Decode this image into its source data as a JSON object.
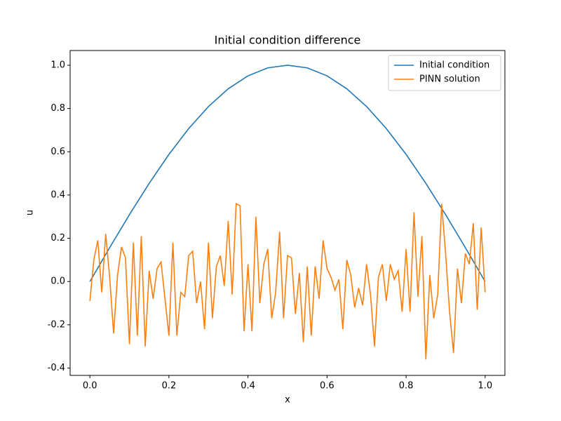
{
  "chart_data": {
    "type": "line",
    "title": "Initial condition difference",
    "x_label": "x",
    "y_label": "u",
    "xlim": [
      -0.05,
      1.05
    ],
    "ylim": [
      -0.434,
      1.068
    ],
    "xticks": [
      {
        "value": 0,
        "label": "0.0"
      },
      0.2,
      0.4,
      0.6,
      0.8,
      {
        "value": 1,
        "label": "1.0"
      }
    ],
    "yticks": [
      -0.4,
      -0.2,
      {
        "value": 0,
        "label": "0.0"
      },
      0.2,
      0.4,
      0.6,
      0.8,
      {
        "value": 1,
        "label": "1.0"
      }
    ],
    "grid": false,
    "legend": "upper right",
    "series": [
      {
        "name": "Initial condition",
        "color": "#1f77b4",
        "x": [
          0,
          0.05,
          0.1,
          0.15,
          0.2,
          0.25,
          0.3,
          0.35,
          0.4,
          0.45,
          0.5,
          0.55,
          0.6,
          0.65,
          0.7,
          0.75,
          0.8,
          0.85,
          0.9,
          0.95,
          1
        ],
        "values": [
          0,
          0.1564,
          0.309,
          0.454,
          0.5878,
          0.7071,
          0.809,
          0.891,
          0.9511,
          0.9877,
          1,
          0.9877,
          0.9511,
          0.891,
          0.809,
          0.7071,
          0.5878,
          0.454,
          0.309,
          0.1564,
          0
        ]
      },
      {
        "name": "PINN solution",
        "color": "#ff7f0e",
        "x": [
          0,
          0.01,
          0.02,
          0.03,
          0.04,
          0.05,
          0.06,
          0.07,
          0.08,
          0.09,
          0.1,
          0.11,
          0.12,
          0.13,
          0.14,
          0.15,
          0.16,
          0.17,
          0.18,
          0.19,
          0.2,
          0.21,
          0.22,
          0.23,
          0.24,
          0.25,
          0.26,
          0.27,
          0.28,
          0.29,
          0.3,
          0.31,
          0.32,
          0.33,
          0.34,
          0.35,
          0.36,
          0.37,
          0.38,
          0.39,
          0.4,
          0.41,
          0.42,
          0.43,
          0.44,
          0.45,
          0.46,
          0.47,
          0.48,
          0.49,
          0.5,
          0.51,
          0.52,
          0.53,
          0.54,
          0.55,
          0.56,
          0.57,
          0.58,
          0.59,
          0.6,
          0.61,
          0.62,
          0.63,
          0.64,
          0.65,
          0.66,
          0.67,
          0.68,
          0.69,
          0.7,
          0.71,
          0.72,
          0.73,
          0.74,
          0.75,
          0.76,
          0.77,
          0.78,
          0.79,
          0.8,
          0.81,
          0.82,
          0.83,
          0.84,
          0.85,
          0.86,
          0.87,
          0.88,
          0.89,
          0.9,
          0.91,
          0.92,
          0.93,
          0.94,
          0.95,
          0.96,
          0.97,
          0.98,
          0.99,
          1
        ],
        "values": [
          -0.09,
          0.1,
          0.19,
          -0.05,
          0.22,
          0.02,
          -0.24,
          0.03,
          0.16,
          0.11,
          -0.29,
          0.18,
          -0.25,
          0.21,
          -0.3,
          0.05,
          -0.08,
          0.06,
          0.09,
          -0.08,
          -0.25,
          0.18,
          -0.25,
          -0.05,
          -0.07,
          0.12,
          0.14,
          -0.1,
          0,
          -0.22,
          0.18,
          -0.17,
          0.07,
          0.12,
          -0.02,
          0.28,
          -0.06,
          0.36,
          0.35,
          -0.23,
          0.08,
          -0.23,
          0.3,
          -0.1,
          0.08,
          0.15,
          -0.17,
          -0.05,
          0.23,
          -0.17,
          0.12,
          0.11,
          -0.15,
          0.04,
          -0.28,
          0.07,
          -0.25,
          0.07,
          -0.08,
          0.19,
          0.06,
          0.02,
          -0.04,
          0.01,
          -0.22,
          0.1,
          0.03,
          -0.12,
          -0.03,
          -0.11,
          0.08,
          -0.06,
          -0.3,
          0.02,
          0.08,
          -0.09,
          0.08,
          0.01,
          0.05,
          -0.14,
          0.15,
          -0.14,
          0.32,
          -0.07,
          0.21,
          -0.36,
          0.03,
          -0.17,
          -0.06,
          0.36,
          0.13,
          -0.14,
          -0.33,
          0.06,
          -0.1,
          0.13,
          0.08,
          0.27,
          -0.13,
          0.25,
          -0.05
        ]
      }
    ]
  }
}
